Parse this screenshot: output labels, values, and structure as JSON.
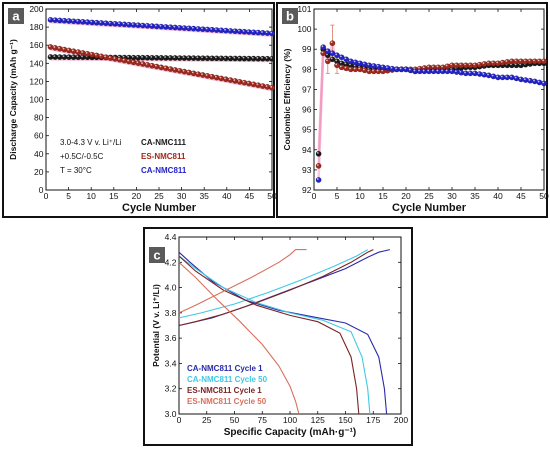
{
  "chart_data": [
    {
      "id": "a",
      "type": "scatter",
      "panel_label": "a",
      "xlabel": "Cycle Number",
      "ylabel": "Discharge Capacity (mAh g⁻¹)",
      "xlim": [
        0,
        50
      ],
      "ylim": [
        0,
        200
      ],
      "xticks": [
        0,
        5,
        10,
        15,
        20,
        25,
        30,
        35,
        40,
        45,
        50
      ],
      "yticks": [
        0,
        20,
        40,
        60,
        80,
        100,
        120,
        140,
        160,
        180,
        200
      ],
      "annotations": [
        "3.0-4.3 V v. Li⁺/Li",
        "+0.5C/-0.5C",
        "T = 30°C"
      ],
      "series": [
        {
          "name": "CA-NMC111",
          "color": "#1a1a1a",
          "x_start": 1,
          "x_end": 50,
          "y_start": 147,
          "y_end": 145
        },
        {
          "name": "ES-NMC811",
          "color": "#a0281c",
          "x_start": 1,
          "x_end": 50,
          "y_start": 158,
          "y_end": 113
        },
        {
          "name": "CA-NMC811",
          "color": "#2323c8",
          "x_start": 1,
          "x_end": 50,
          "y_start": 188,
          "y_end": 173
        }
      ]
    },
    {
      "id": "b",
      "type": "scatter",
      "panel_label": "b",
      "xlabel": "Cycle Number",
      "ylabel": "Coulombic Efficiency (%)",
      "xlim": [
        0,
        50
      ],
      "ylim": [
        92,
        101
      ],
      "xticks": [
        0,
        5,
        10,
        15,
        20,
        25,
        30,
        35,
        40,
        45,
        50
      ],
      "yticks": [
        92,
        93,
        94,
        95,
        96,
        97,
        98,
        99,
        100,
        101
      ],
      "series": [
        {
          "name": "CA-NMC111",
          "color": "#1a1a1a",
          "x": [
            1,
            2,
            3,
            4,
            5,
            6,
            8,
            10,
            12,
            15,
            18,
            20,
            22,
            25,
            28,
            30,
            33,
            35,
            38,
            40,
            43,
            45,
            48,
            50
          ],
          "y": [
            93.8,
            99.0,
            98.7,
            98.5,
            98.4,
            98.3,
            98.2,
            98.1,
            98.0,
            98.0,
            98.0,
            98.0,
            97.9,
            98.0,
            98.0,
            98.0,
            98.1,
            98.1,
            98.2,
            98.2,
            98.2,
            98.2,
            98.3,
            98.3
          ]
        },
        {
          "name": "ES-NMC811",
          "color": "#a0281c",
          "x": [
            1,
            2,
            3,
            4,
            5,
            6,
            8,
            10,
            12,
            15,
            18,
            20,
            22,
            25,
            28,
            30,
            33,
            35,
            38,
            40,
            43,
            45,
            48,
            50
          ],
          "y": [
            93.2,
            98.8,
            98.4,
            99.3,
            98.2,
            98.1,
            98.0,
            98.0,
            97.9,
            97.9,
            98.0,
            98.0,
            98.0,
            98.1,
            98.1,
            98.2,
            98.2,
            98.2,
            98.3,
            98.3,
            98.4,
            98.4,
            98.4,
            98.4
          ]
        },
        {
          "name": "CA-NMC811",
          "color": "#2323c8",
          "x": [
            1,
            2,
            3,
            4,
            5,
            6,
            8,
            10,
            12,
            15,
            18,
            20,
            22,
            25,
            28,
            30,
            33,
            35,
            38,
            40,
            43,
            45,
            48,
            50
          ],
          "y": [
            92.5,
            99.1,
            98.9,
            98.8,
            98.7,
            98.6,
            98.4,
            98.3,
            98.2,
            98.1,
            98.0,
            98.0,
            97.9,
            97.9,
            97.9,
            97.9,
            97.8,
            97.8,
            97.7,
            97.6,
            97.6,
            97.5,
            97.4,
            97.3
          ]
        }
      ]
    },
    {
      "id": "c",
      "type": "line",
      "panel_label": "c",
      "xlabel": "Specific Capacity (mAh·g⁻¹)",
      "ylabel": "Potential (V v. Li⁺/Li)",
      "xlim": [
        0,
        200
      ],
      "ylim": [
        3.0,
        4.4
      ],
      "xticks": [
        0,
        25,
        50,
        75,
        100,
        125,
        150,
        175,
        200
      ],
      "yticks": [
        3.0,
        3.2,
        3.4,
        3.6,
        3.8,
        4.0,
        4.2,
        4.4
      ],
      "series": [
        {
          "name": "CA-NMC811 Cycle 1",
          "color": "#2a2aa8",
          "charge": [
            [
              0,
              3.7
            ],
            [
              10,
              3.72
            ],
            [
              30,
              3.76
            ],
            [
              60,
              3.85
            ],
            [
              90,
              3.95
            ],
            [
              120,
              4.05
            ],
            [
              150,
              4.15
            ],
            [
              170,
              4.24
            ],
            [
              180,
              4.28
            ],
            [
              190,
              4.3
            ]
          ],
          "discharge": [
            [
              0,
              4.28
            ],
            [
              10,
              4.2
            ],
            [
              30,
              4.05
            ],
            [
              60,
              3.9
            ],
            [
              90,
              3.82
            ],
            [
              120,
              3.77
            ],
            [
              150,
              3.72
            ],
            [
              170,
              3.63
            ],
            [
              180,
              3.45
            ],
            [
              185,
              3.2
            ],
            [
              187,
              3.0
            ]
          ]
        },
        {
          "name": "CA-NMC811 Cycle 50",
          "color": "#40c8e6",
          "charge": [
            [
              0,
              3.76
            ],
            [
              20,
              3.8
            ],
            [
              50,
              3.87
            ],
            [
              80,
              3.96
            ],
            [
              110,
              4.06
            ],
            [
              140,
              4.17
            ],
            [
              160,
              4.25
            ],
            [
              170,
              4.3
            ]
          ],
          "discharge": [
            [
              0,
              4.25
            ],
            [
              15,
              4.15
            ],
            [
              40,
              4.0
            ],
            [
              70,
              3.88
            ],
            [
              100,
              3.8
            ],
            [
              130,
              3.74
            ],
            [
              155,
              3.65
            ],
            [
              165,
              3.45
            ],
            [
              170,
              3.2
            ],
            [
              172,
              3.0
            ]
          ]
        },
        {
          "name": "ES-NMC811 Cycle 1",
          "color": "#7a2424",
          "charge": [
            [
              0,
              3.7
            ],
            [
              15,
              3.73
            ],
            [
              40,
              3.79
            ],
            [
              70,
              3.88
            ],
            [
              100,
              3.98
            ],
            [
              130,
              4.09
            ],
            [
              155,
              4.2
            ],
            [
              170,
              4.28
            ],
            [
              175,
              4.3
            ]
          ],
          "discharge": [
            [
              0,
              4.25
            ],
            [
              15,
              4.13
            ],
            [
              40,
              3.98
            ],
            [
              70,
              3.86
            ],
            [
              100,
              3.78
            ],
            [
              125,
              3.73
            ],
            [
              145,
              3.64
            ],
            [
              155,
              3.45
            ],
            [
              160,
              3.2
            ],
            [
              162,
              3.0
            ]
          ]
        },
        {
          "name": "ES-NMC811 Cycle 50",
          "color": "#d8705c",
          "charge": [
            [
              0,
              3.8
            ],
            [
              15,
              3.86
            ],
            [
              40,
              3.97
            ],
            [
              65,
              4.08
            ],
            [
              90,
              4.2
            ],
            [
              100,
              4.26
            ],
            [
              105,
              4.3
            ],
            [
              115,
              4.3
            ]
          ],
          "discharge": [
            [
              0,
              4.2
            ],
            [
              15,
              4.08
            ],
            [
              35,
              3.9
            ],
            [
              55,
              3.73
            ],
            [
              75,
              3.55
            ],
            [
              90,
              3.38
            ],
            [
              100,
              3.22
            ],
            [
              105,
              3.1
            ],
            [
              108,
              3.0
            ]
          ]
        }
      ]
    }
  ]
}
